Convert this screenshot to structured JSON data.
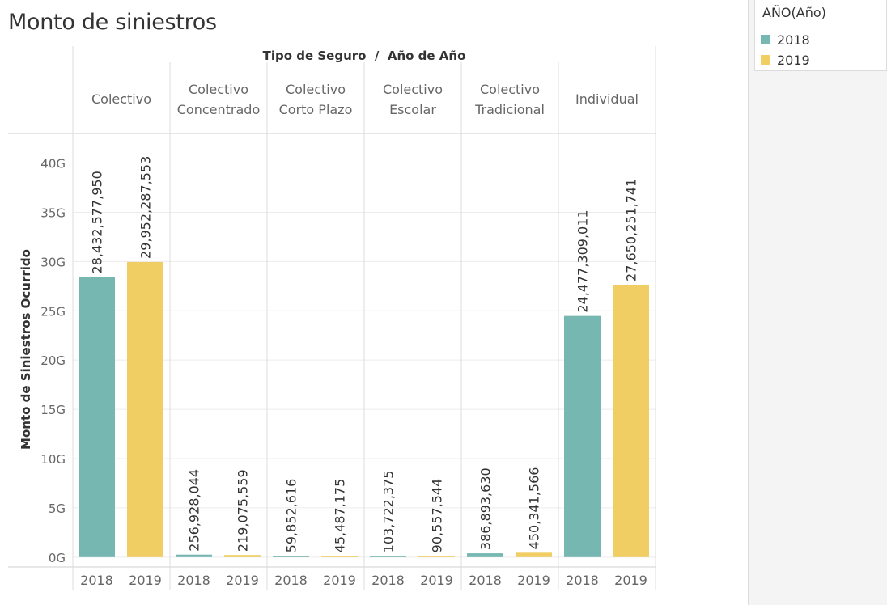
{
  "title": "Monto de siniestros",
  "legend": {
    "title": "AÑO(Año)",
    "items": [
      {
        "label": "2018",
        "color": "#76b7b2"
      },
      {
        "label": "2019",
        "color": "#f1ce63"
      }
    ]
  },
  "chart_data": {
    "type": "bar",
    "header": "Tipo de Seguro  /  Año de Año",
    "ylabel": "Monto de Siniestros Ocurrido",
    "ylim": [
      -1000000000,
      43000000000
    ],
    "yticks": [
      {
        "value": 0,
        "label": "0G"
      },
      {
        "value": 5000000000,
        "label": "5G"
      },
      {
        "value": 10000000000,
        "label": "10G"
      },
      {
        "value": 15000000000,
        "label": "15G"
      },
      {
        "value": 20000000000,
        "label": "20G"
      },
      {
        "value": 25000000000,
        "label": "25G"
      },
      {
        "value": 30000000000,
        "label": "30G"
      },
      {
        "value": 35000000000,
        "label": "35G"
      },
      {
        "value": 40000000000,
        "label": "40G"
      }
    ],
    "groups": [
      {
        "lines": [
          "Colectivo"
        ],
        "bars": [
          {
            "year": "2018",
            "value": 28432577950,
            "label": "28,432,577,950"
          },
          {
            "year": "2019",
            "value": 29952287553,
            "label": "29,952,287,553"
          }
        ]
      },
      {
        "lines": [
          "Colectivo",
          "Concentrado"
        ],
        "bars": [
          {
            "year": "2018",
            "value": 256928044,
            "label": "256,928,044"
          },
          {
            "year": "2019",
            "value": 219075559,
            "label": "219,075,559"
          }
        ]
      },
      {
        "lines": [
          "Colectivo",
          "Corto Plazo"
        ],
        "bars": [
          {
            "year": "2018",
            "value": 59852616,
            "label": "59,852,616"
          },
          {
            "year": "2019",
            "value": 45487175,
            "label": "45,487,175"
          }
        ]
      },
      {
        "lines": [
          "Colectivo",
          "Escolar"
        ],
        "bars": [
          {
            "year": "2018",
            "value": 103722375,
            "label": "103,722,375"
          },
          {
            "year": "2019",
            "value": 90557544,
            "label": "90,557,544"
          }
        ]
      },
      {
        "lines": [
          "Colectivo",
          "Tradicional"
        ],
        "bars": [
          {
            "year": "2018",
            "value": 386893630,
            "label": "386,893,630"
          },
          {
            "year": "2019",
            "value": 450341566,
            "label": "450,341,566"
          }
        ]
      },
      {
        "lines": [
          "Individual"
        ],
        "bars": [
          {
            "year": "2018",
            "value": 24477309011,
            "label": "24,477,309,011"
          },
          {
            "year": "2019",
            "value": 27650251741,
            "label": "27,650,251,741"
          }
        ]
      }
    ],
    "colors": {
      "2018": "#76b7b2",
      "2019": "#f1ce63"
    },
    "grid": true,
    "legend_position": "top-right"
  }
}
